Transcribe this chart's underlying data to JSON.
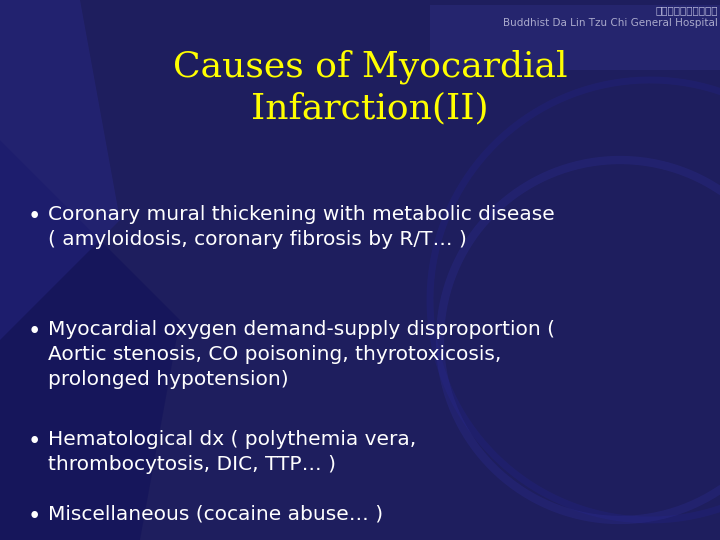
{
  "title_line1": "Causes of Myocardial",
  "title_line2": "Infarction(II)",
  "title_color": "#FFFF00",
  "title_fontsize": 26,
  "bg_color": "#1e1e5e",
  "bullet_color": "#FFFFFF",
  "bullet_fontsize": 14.5,
  "bullets": [
    "Coronary mural thickening with metabolic disease\n( amyloidosis, coronary fibrosis by R/T… )",
    "Myocardial oxygen demand-supply disproportion (\nAortic stenosis, CO poisoning, thyrotoxicosis,\nprolonged hypotension)",
    "Hematological dx ( polythemia vera,\nthrombocytosis, DIC, TTP… )",
    "Miscellaneous (cocaine abuse… )"
  ],
  "hospital_text": "Buddhist Da Lin Tzu Chi General Hospital",
  "hospital_color": "#aaaacc",
  "hospital_fontsize": 7.5,
  "chinese_text": "佛教大林慈濟綜合醫院",
  "chinese_color": "#bbbbdd",
  "chinese_fontsize": 7.5,
  "header_bar_color": "#2a2a7a",
  "header_bar_alpha": 0.6
}
